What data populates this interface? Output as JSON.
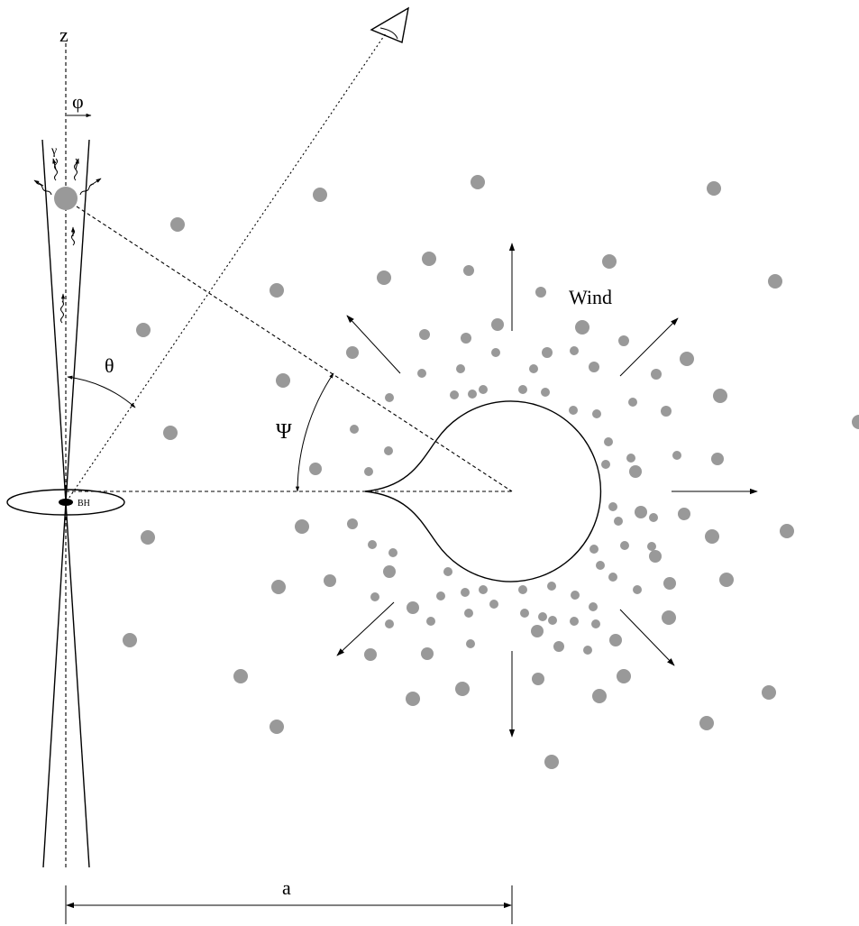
{
  "labels": {
    "z_axis": "z",
    "jet_angle": "φ",
    "photon": "γ",
    "theta": "θ",
    "psi": "Ψ",
    "wind": "Wind",
    "black_hole": "BH",
    "separation": "a"
  },
  "colors": {
    "clump": "#999999",
    "line": "#000000",
    "background": "#ffffff"
  },
  "icons": {
    "observer": "eye-icon"
  }
}
